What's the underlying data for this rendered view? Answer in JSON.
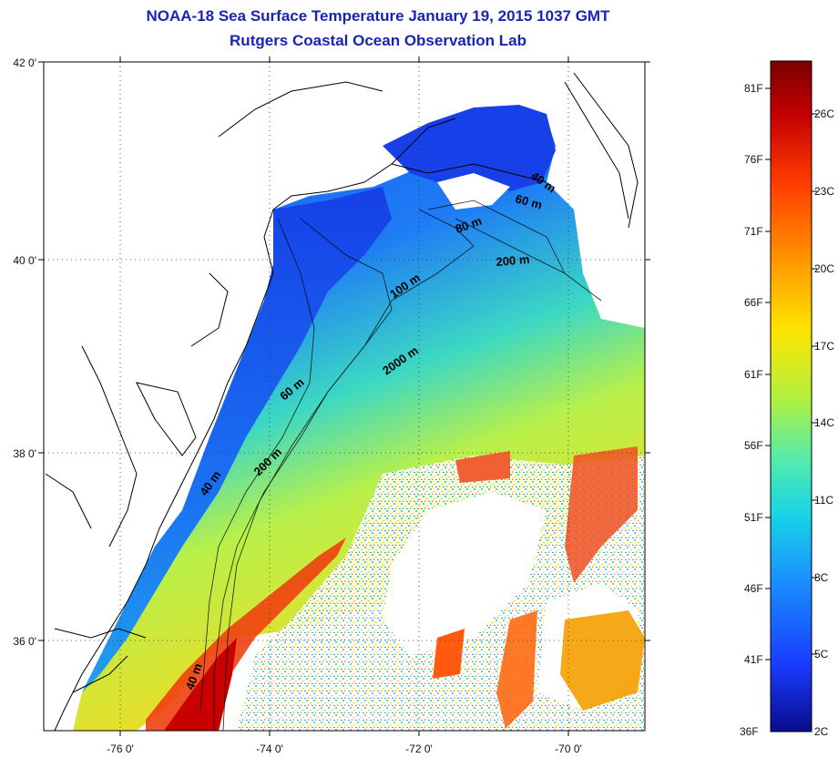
{
  "title": {
    "line1": "NOAA-18 Sea Surface Temperature January 19, 2015 1037 GMT",
    "line2": "Rutgers Coastal Ocean Observation Lab"
  },
  "map": {
    "x_ticks": [
      "-76 0'",
      "-74 0'",
      "-72 0'",
      "-70 0'"
    ],
    "y_ticks": [
      "42 0'",
      "40 0'",
      "38 0'",
      "36 0'"
    ],
    "lon_range": [
      -77,
      -69
    ],
    "lat_range": [
      35,
      42
    ],
    "grid": "dotted",
    "contour_labels": [
      "40 m",
      "60 m",
      "80 m",
      "200 m",
      "100 m",
      "2000 m",
      "60 m",
      "200 m",
      "40 m",
      "40 m"
    ]
  },
  "colorbar": {
    "fahrenheit_labels": [
      "81F",
      "76F",
      "71F",
      "66F",
      "61F",
      "56F",
      "51F",
      "46F",
      "41F",
      "36F"
    ],
    "celsius_labels": [
      "26C",
      "23C",
      "20C",
      "17C",
      "14C",
      "11C",
      "8C",
      "5C",
      "2C"
    ],
    "colors": [
      "#7a0000",
      "#d40000",
      "#ff4a00",
      "#ff9a00",
      "#ffe000",
      "#c8f23c",
      "#5ef0a0",
      "#18d6e6",
      "#1a8cff",
      "#1a3cff",
      "#0a0a9a"
    ]
  },
  "legend_colors": {
    "land_bg": "#ffffff",
    "outline": "#000000",
    "title_color": "#1a24b4"
  }
}
